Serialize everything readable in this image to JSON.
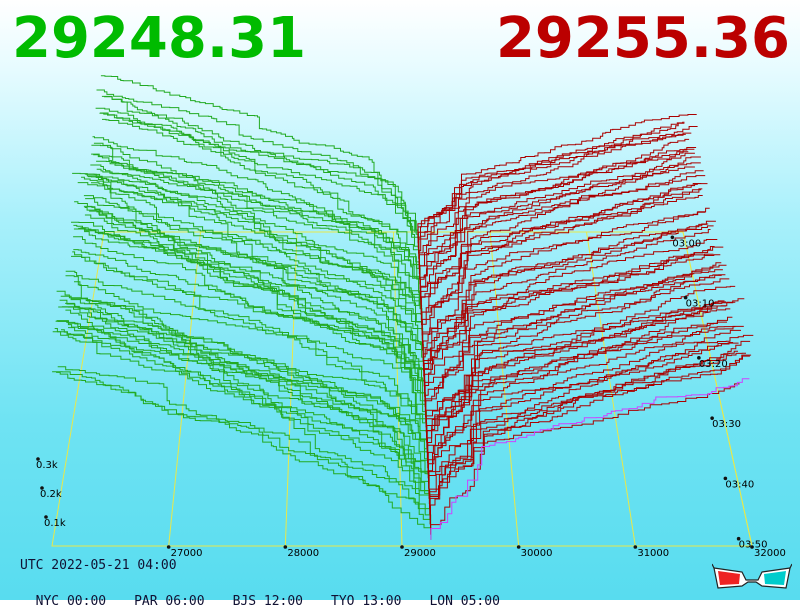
{
  "prices": {
    "bid": "29248.31",
    "ask": "29255.36",
    "bid_color": "#00bb00",
    "ask_color": "#bb0000"
  },
  "footer": {
    "utc": "UTC 2022-05-21 04:00",
    "timezones": [
      {
        "label": "NYC 00:00"
      },
      {
        "label": "PAR 06:00"
      },
      {
        "label": "BJS 12:00"
      },
      {
        "label": "TYO 13:00"
      },
      {
        "label": "LON 05:00"
      }
    ]
  },
  "colors": {
    "bid_lines": "#22aa22",
    "ask_lines": "#aa0000",
    "grid": "#e8e84a",
    "depth_line": "#cc44ff"
  },
  "chart_data": {
    "type": "3d-depth-surface",
    "x_ticks": [
      27000,
      28000,
      29000,
      30000,
      31000,
      32000
    ],
    "y_ticks": [
      "0.1k",
      "0.2k",
      "0.3k"
    ],
    "z_ticks": [
      "03:00",
      "03:10",
      "03:20",
      "03:30",
      "03:40",
      "03:50"
    ],
    "mid_price": 29250,
    "x_range": [
      26000,
      32000
    ],
    "max_volume_k": 0.9,
    "snapshots": 60
  },
  "icons": {
    "glasses": "3d-glasses-icon"
  }
}
